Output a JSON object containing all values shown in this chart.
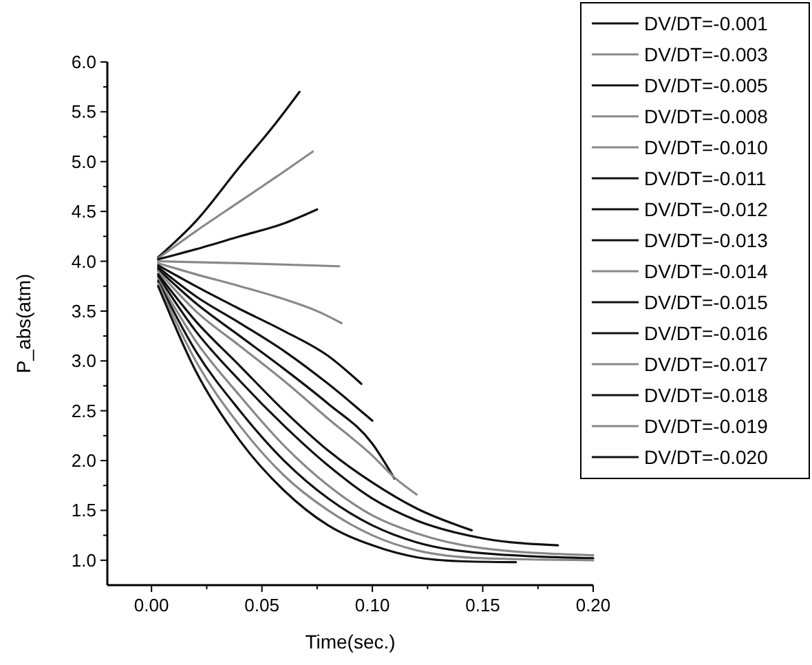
{
  "chart_data": {
    "type": "line",
    "xlabel": "Time(sec.)",
    "ylabel": "P_abs(atm)",
    "xlim": [
      -0.02,
      0.2
    ],
    "ylim": [
      0.75,
      6.0
    ],
    "xticks": [
      {
        "value": 0,
        "label": "0.00"
      },
      {
        "value": 0.025,
        "label": null
      },
      {
        "value": 0.05,
        "label": "0.05"
      },
      {
        "value": 0.075,
        "label": null
      },
      {
        "value": 0.1,
        "label": "0.10"
      },
      {
        "value": 0.125,
        "label": null
      },
      {
        "value": 0.15,
        "label": "0.15"
      },
      {
        "value": 0.175,
        "label": null
      },
      {
        "value": 0.2,
        "label": "0.20"
      }
    ],
    "yticks": [
      {
        "value": 1,
        "label": "1.0"
      },
      {
        "value": 1.25,
        "label": null
      },
      {
        "value": 1.5,
        "label": "1.5"
      },
      {
        "value": 1.75,
        "label": null
      },
      {
        "value": 2,
        "label": "2.0"
      },
      {
        "value": 2.25,
        "label": null
      },
      {
        "value": 2.5,
        "label": "2.5"
      },
      {
        "value": 2.75,
        "label": null
      },
      {
        "value": 3,
        "label": "3.0"
      },
      {
        "value": 3.25,
        "label": null
      },
      {
        "value": 3.5,
        "label": "3.5"
      },
      {
        "value": 3.75,
        "label": null
      },
      {
        "value": 4,
        "label": "4.0"
      },
      {
        "value": 4.25,
        "label": null
      },
      {
        "value": 4.5,
        "label": "4.5"
      },
      {
        "value": 4.75,
        "label": null
      },
      {
        "value": 5,
        "label": "5.0"
      },
      {
        "value": 5.25,
        "label": null
      },
      {
        "value": 5.5,
        "label": "5.5"
      },
      {
        "value": 5.75,
        "label": null
      },
      {
        "value": 6,
        "label": "6.0"
      }
    ],
    "grid": false,
    "legend": "top right",
    "marker": "none",
    "line_style": "solid",
    "series": [
      {
        "name": "DV/DT=-0.001",
        "color": "#111111",
        "x": [
          0.003,
          0.02,
          0.04,
          0.055,
          0.067
        ],
        "values": [
          4.04,
          4.4,
          4.95,
          5.35,
          5.7
        ]
      },
      {
        "name": "DV/DT=-0.003",
        "color": "#888888",
        "x": [
          0.003,
          0.02,
          0.04,
          0.06,
          0.073
        ],
        "values": [
          4.03,
          4.3,
          4.6,
          4.9,
          5.1
        ]
      },
      {
        "name": "DV/DT=-0.005",
        "color": "#111111",
        "x": [
          0.003,
          0.02,
          0.04,
          0.06,
          0.075
        ],
        "values": [
          4.02,
          4.12,
          4.25,
          4.38,
          4.52
        ]
      },
      {
        "name": "DV/DT=-0.008",
        "color": "#888888",
        "x": [
          0.003,
          0.04,
          0.085
        ],
        "values": [
          4.0,
          3.98,
          3.95
        ]
      },
      {
        "name": "DV/DT=-0.010",
        "color": "#888888",
        "x": [
          0.003,
          0.02,
          0.04,
          0.06,
          0.075,
          0.086
        ],
        "values": [
          3.98,
          3.87,
          3.75,
          3.62,
          3.5,
          3.38
        ]
      },
      {
        "name": "DV/DT=-0.011",
        "color": "#111111",
        "x": [
          0.003,
          0.02,
          0.04,
          0.06,
          0.08,
          0.095
        ],
        "values": [
          3.96,
          3.75,
          3.52,
          3.3,
          3.05,
          2.77
        ]
      },
      {
        "name": "DV/DT=-0.012",
        "color": "#111111",
        "x": [
          0.003,
          0.02,
          0.04,
          0.06,
          0.08,
          0.1
        ],
        "values": [
          3.94,
          3.65,
          3.38,
          3.1,
          2.77,
          2.4
        ]
      },
      {
        "name": "DV/DT=-0.013",
        "color": "#111111",
        "x": [
          0.003,
          0.02,
          0.04,
          0.06,
          0.08,
          0.1,
          0.11
        ],
        "values": [
          3.92,
          3.58,
          3.25,
          2.92,
          2.57,
          2.17,
          1.82
        ]
      },
      {
        "name": "DV/DT=-0.014",
        "color": "#888888",
        "x": [
          0.003,
          0.02,
          0.04,
          0.06,
          0.08,
          0.1,
          0.11,
          0.12
        ],
        "values": [
          3.9,
          3.5,
          3.15,
          2.8,
          2.42,
          2.05,
          1.83,
          1.66
        ]
      },
      {
        "name": "DV/DT=-0.015",
        "color": "#111111",
        "x": [
          0.003,
          0.02,
          0.04,
          0.06,
          0.08,
          0.1,
          0.12,
          0.145
        ],
        "values": [
          3.87,
          3.4,
          2.95,
          2.5,
          2.1,
          1.78,
          1.52,
          1.3
        ]
      },
      {
        "name": "DV/DT=-0.016",
        "color": "#111111",
        "x": [
          0.003,
          0.02,
          0.04,
          0.06,
          0.08,
          0.1,
          0.12,
          0.15,
          0.184
        ],
        "values": [
          3.85,
          3.3,
          2.8,
          2.35,
          1.95,
          1.62,
          1.4,
          1.22,
          1.15
        ]
      },
      {
        "name": "DV/DT=-0.017",
        "color": "#888888",
        "x": [
          0.003,
          0.02,
          0.04,
          0.06,
          0.08,
          0.1,
          0.12,
          0.15,
          0.2
        ],
        "values": [
          3.82,
          3.2,
          2.65,
          2.15,
          1.75,
          1.45,
          1.27,
          1.12,
          1.05
        ]
      },
      {
        "name": "DV/DT=-0.018",
        "color": "#111111",
        "x": [
          0.003,
          0.02,
          0.04,
          0.06,
          0.08,
          0.1,
          0.12,
          0.15,
          0.2
        ],
        "values": [
          3.8,
          3.1,
          2.5,
          2.0,
          1.62,
          1.35,
          1.18,
          1.07,
          1.02
        ]
      },
      {
        "name": "DV/DT=-0.019",
        "color": "#888888",
        "x": [
          0.003,
          0.02,
          0.04,
          0.06,
          0.08,
          0.1,
          0.12,
          0.15,
          0.2
        ],
        "values": [
          3.78,
          3.0,
          2.35,
          1.85,
          1.5,
          1.25,
          1.1,
          1.02,
          1.0
        ]
      },
      {
        "name": "DV/DT=-0.020",
        "color": "#111111",
        "x": [
          0.003,
          0.02,
          0.04,
          0.06,
          0.08,
          0.1,
          0.12,
          0.14,
          0.165
        ],
        "values": [
          3.75,
          2.9,
          2.2,
          1.7,
          1.35,
          1.15,
          1.03,
          0.99,
          0.98
        ]
      }
    ]
  }
}
